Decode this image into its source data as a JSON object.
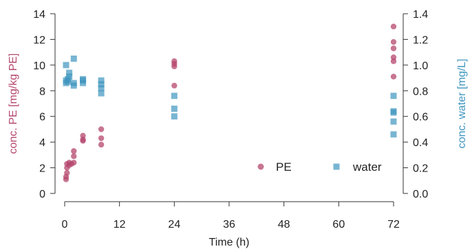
{
  "chart_data": {
    "type": "scatter",
    "xlabel": "Time (h)",
    "ylabel_left": "conc. PE [mg/kg PE]",
    "ylabel_right": "conc. water [mg/L]",
    "xlim": [
      0,
      72
    ],
    "ylim_left": [
      0,
      14
    ],
    "ylim_right": [
      0,
      1.4
    ],
    "x_ticks": [
      0,
      12,
      24,
      36,
      48,
      60,
      72
    ],
    "x_tick_labels": [
      "0",
      "12",
      "24",
      "36",
      "48",
      "60",
      "72"
    ],
    "y_left_ticks": [
      0,
      2,
      4,
      6,
      8,
      10,
      12,
      14
    ],
    "y_left_tick_labels": [
      "0",
      "2",
      "4",
      "6",
      "8",
      "10",
      "12",
      "14"
    ],
    "y_right_ticks": [
      0.0,
      0.2,
      0.4,
      0.6,
      0.8,
      1.0,
      1.2,
      1.4
    ],
    "y_right_tick_labels": [
      "0.0",
      "0.2",
      "0.4",
      "0.6",
      "0.8",
      "1.0",
      "1.2",
      "1.4"
    ],
    "grid": false,
    "legend_position": "bottom-right",
    "series": [
      {
        "name": "PE",
        "axis": "left",
        "marker": "circle",
        "color": "#b5476e",
        "points": [
          [
            0.3,
            1.1
          ],
          [
            0.3,
            1.3
          ],
          [
            0.5,
            1.6
          ],
          [
            0.5,
            2.0
          ],
          [
            0.5,
            2.3
          ],
          [
            1,
            2.2
          ],
          [
            1,
            2.4
          ],
          [
            1.5,
            2.3
          ],
          [
            2,
            2.4
          ],
          [
            2,
            2.9
          ],
          [
            2,
            3.3
          ],
          [
            4,
            4.1
          ],
          [
            4,
            4.2
          ],
          [
            4,
            4.5
          ],
          [
            8,
            3.8
          ],
          [
            8,
            4.3
          ],
          [
            8,
            5.0
          ],
          [
            24,
            8.4
          ],
          [
            24,
            9.9
          ],
          [
            24,
            10.1
          ],
          [
            24,
            10.3
          ],
          [
            72,
            9.1
          ],
          [
            72,
            10.3
          ],
          [
            72,
            10.6
          ],
          [
            72,
            11.3
          ],
          [
            72,
            11.8
          ],
          [
            72,
            13.0
          ]
        ]
      },
      {
        "name": "water",
        "axis": "right",
        "marker": "square",
        "color": "#3f95bf",
        "points": [
          [
            0.3,
            0.86
          ],
          [
            0.3,
            0.88
          ],
          [
            0.3,
            1.0
          ],
          [
            0.7,
            0.87
          ],
          [
            0.7,
            0.89
          ],
          [
            1,
            0.91
          ],
          [
            1,
            0.94
          ],
          [
            2,
            0.84
          ],
          [
            2,
            0.86
          ],
          [
            2,
            1.05
          ],
          [
            4,
            0.86
          ],
          [
            4,
            0.88
          ],
          [
            4,
            0.89
          ],
          [
            8,
            0.78
          ],
          [
            8,
            0.82
          ],
          [
            8,
            0.85
          ],
          [
            8,
            0.88
          ],
          [
            24,
            0.6
          ],
          [
            24,
            0.66
          ],
          [
            24,
            0.76
          ],
          [
            72,
            0.46
          ],
          [
            72,
            0.56
          ],
          [
            72,
            0.63
          ],
          [
            72,
            0.64
          ],
          [
            72,
            0.76
          ]
        ]
      }
    ]
  }
}
